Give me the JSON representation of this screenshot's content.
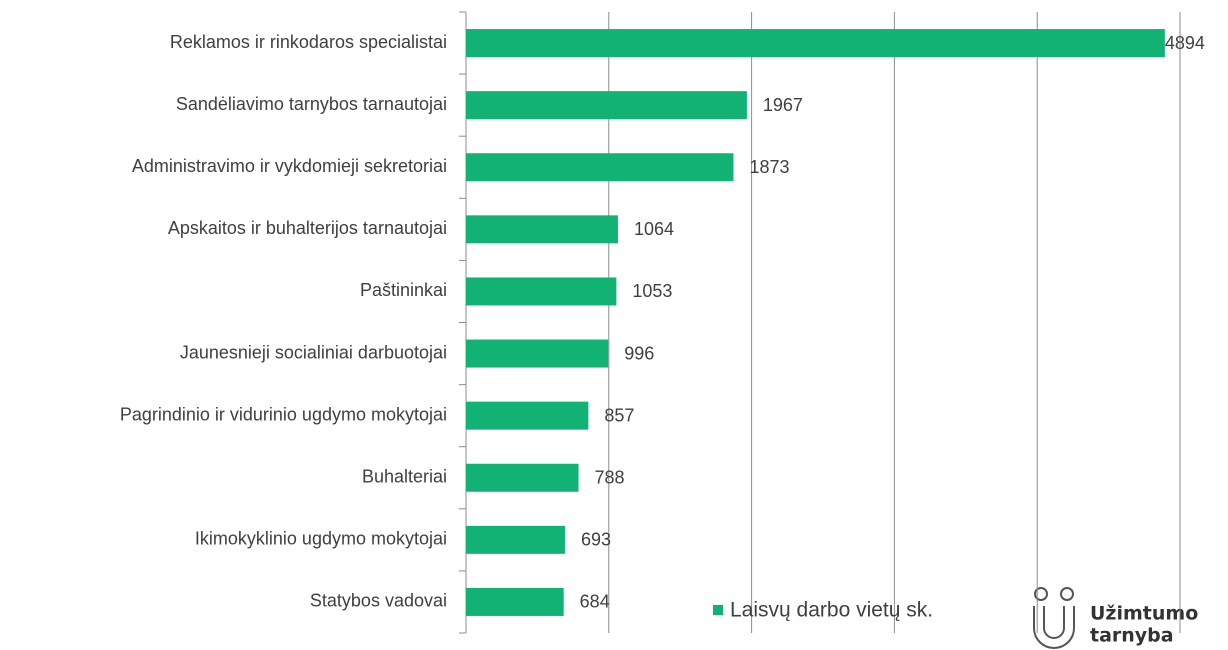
{
  "chart_data": {
    "type": "barh",
    "categories": [
      "Reklamos ir rinkodaros specialistai",
      "Sandėliavimo tarnybos tarnautojai",
      "Administravimo ir vykdomieji sekretoriai",
      "Apskaitos ir buhalterijos tarnautojai",
      "Paštininkai",
      "Jaunesnieji socialiniai darbuotojai",
      "Pagrindinio ir vidurinio ugdymo mokytojai",
      "Buhalteriai",
      "Ikimokyklinio ugdymo mokytojai",
      "Statybos vadovai"
    ],
    "series": [
      {
        "name": "Laisvų darbo vietų sk.",
        "color": "#12b274",
        "values": [
          4894,
          1967,
          1873,
          1064,
          1053,
          996,
          857,
          788,
          693,
          684
        ]
      }
    ],
    "xlim": [
      0,
      5000
    ],
    "xticks": [
      0,
      1000,
      2000,
      3000,
      4000,
      5000
    ],
    "grid": true,
    "legend": "bottom-right"
  },
  "logo": [
    "Užimtumo",
    "tarnyba"
  ]
}
